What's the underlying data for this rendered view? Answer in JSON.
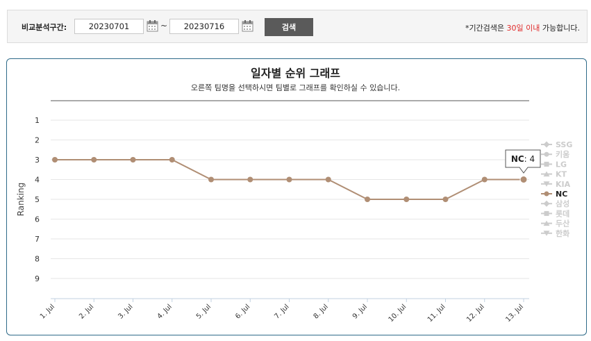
{
  "filter": {
    "label": "비교분석구간:",
    "start_date": "20230701",
    "end_date": "20230716",
    "tilde": "~",
    "search_label": "검색",
    "notice_pre": "*기간검색은 ",
    "notice_hl": "30일 이내",
    "notice_post": " 가능합니다."
  },
  "colors": {
    "nc_line": "#b08e74",
    "inactive": "#cccccc",
    "panel_border": "#2d6a88",
    "notice_highlight": "#e02a2a"
  },
  "icons": [
    "calendar-icon",
    "calendar-icon"
  ],
  "chart_data": {
    "type": "line",
    "title": "일자별 순위 그래프",
    "subtitle": "오른쪽 팀명을 선택하시면 팀별로 그래프를 확인하실 수 있습니다.",
    "xlabel": "",
    "ylabel": "Ranking",
    "categories": [
      "1. Jul",
      "2. Jul",
      "3. Jul",
      "4. Jul",
      "5. Jul",
      "6. Jul",
      "7. Jul",
      "8. Jul",
      "9. Jul",
      "10. Jul",
      "11. Jul",
      "12. Jul",
      "13. Jul"
    ],
    "y_ticks": [
      "1",
      "2",
      "3",
      "4",
      "5",
      "6",
      "7",
      "8",
      "9"
    ],
    "ylim": [
      1,
      10
    ],
    "y_reversed": true,
    "grid": true,
    "legend_position": "right",
    "series": [
      {
        "name": "NC",
        "values": [
          3,
          3,
          3,
          3,
          4,
          4,
          4,
          4,
          5,
          5,
          5,
          4,
          4
        ],
        "active": true
      }
    ],
    "legend": [
      {
        "name": "SSG",
        "marker": "diamond",
        "active": false
      },
      {
        "name": "키움",
        "marker": "circle",
        "active": false
      },
      {
        "name": "LG",
        "marker": "square",
        "active": false
      },
      {
        "name": "KT",
        "marker": "triangle",
        "active": false
      },
      {
        "name": "KIA",
        "marker": "triangle-down",
        "active": false
      },
      {
        "name": "NC",
        "marker": "circle",
        "active": true
      },
      {
        "name": "삼성",
        "marker": "diamond",
        "active": false
      },
      {
        "name": "롯데",
        "marker": "square",
        "active": false
      },
      {
        "name": "두산",
        "marker": "triangle",
        "active": false
      },
      {
        "name": "한화",
        "marker": "triangle-down",
        "active": false
      }
    ],
    "tooltip": {
      "series": "NC",
      "value": "4",
      "separator": ": "
    }
  }
}
